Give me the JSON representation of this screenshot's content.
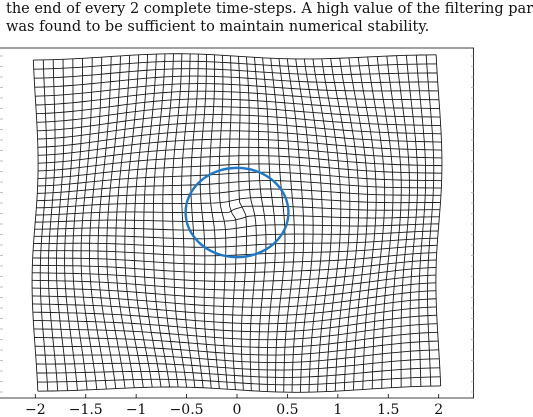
{
  "text": {
    "line1": "the end of every 2 complete time-steps. A high value of the filtering par",
    "line2": "was found to be sufficient to maintain numerical stability."
  },
  "chart_data": {
    "type": "mesh",
    "title": "",
    "xlabel": "",
    "ylabel": "",
    "xlim": [
      -2.35,
      2.35
    ],
    "ylim": [
      -2.0,
      2.0
    ],
    "xticks": [
      -2,
      -1.5,
      -1,
      -0.5,
      0,
      0.5,
      1,
      1.5,
      2
    ],
    "xtick_labels": [
      "−2",
      "−1.5",
      "−1",
      "−0.5",
      "0",
      "0.5",
      "1",
      "1.5",
      "2"
    ],
    "mesh": {
      "x_range": [
        -2.0,
        2.0
      ],
      "y_range": [
        -1.9,
        1.9
      ],
      "lines_x": 46,
      "lines_y": 42,
      "color": "#1a1a1a"
    },
    "circle": {
      "center": [
        0.0,
        0.12
      ],
      "radius": 0.51,
      "color": "#1f78c8"
    }
  }
}
